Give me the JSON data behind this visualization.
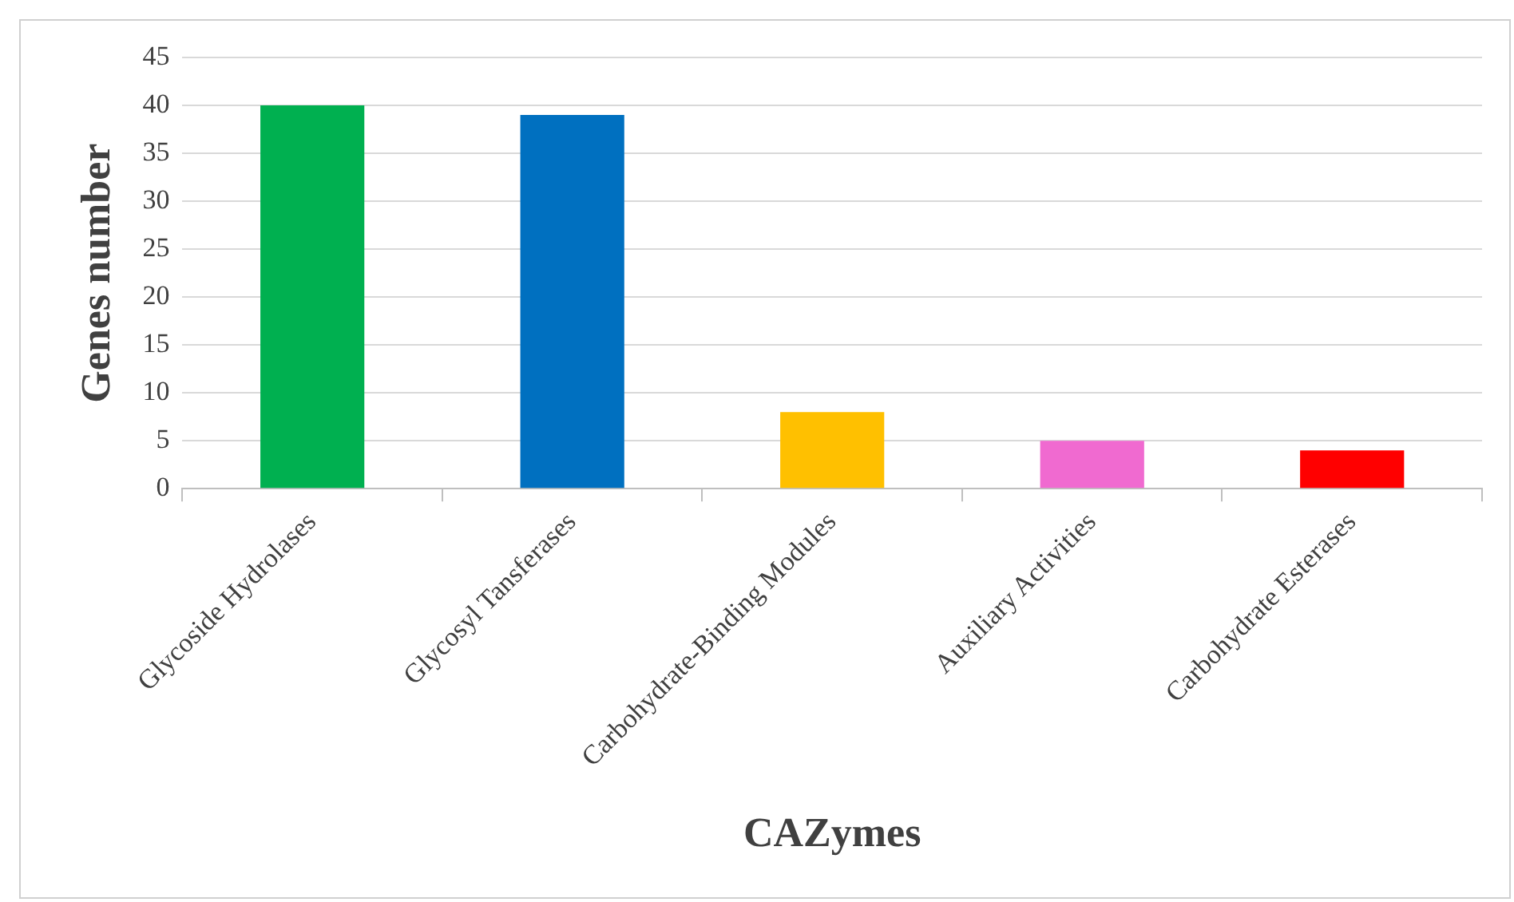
{
  "chart_data": {
    "type": "bar",
    "xlabel": "CAZymes",
    "ylabel": "Genes number",
    "categories": [
      "Glycoside Hydrolases",
      "Glycosyl Tansferases",
      "Carbohydrate-Binding Modules",
      "Auxiliary Activities",
      "Carbohydrate Esterases"
    ],
    "values": [
      40,
      39,
      8,
      5,
      4
    ],
    "colors": [
      "#00b050",
      "#0070c0",
      "#ffc000",
      "#f06ad0",
      "#ff0000"
    ],
    "ylim": [
      0,
      45
    ],
    "yticks": [
      0,
      5,
      10,
      15,
      20,
      25,
      30,
      35,
      40,
      45
    ],
    "grid": "y",
    "legend": false
  }
}
